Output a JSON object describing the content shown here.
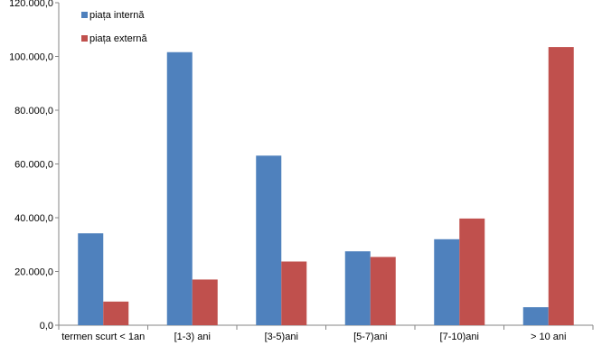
{
  "chart_data": {
    "type": "bar",
    "title": "",
    "xlabel": "",
    "ylabel": "",
    "categories": [
      "termen scurt < 1an",
      "[1-3) ani",
      "[3-5)ani",
      "[5-7)ani",
      "[7-10)ani",
      "> 10 ani"
    ],
    "series": [
      {
        "name": "piața internă",
        "color": "#4F81BD",
        "values": [
          34200,
          101600,
          63100,
          27500,
          32000,
          6700
        ]
      },
      {
        "name": "piața externă",
        "color": "#C0504D",
        "values": [
          8800,
          17000,
          23700,
          25400,
          39700,
          103500
        ]
      }
    ],
    "ylim": [
      0,
      120000
    ],
    "yticks": [
      0,
      20000,
      40000,
      60000,
      80000,
      100000,
      120000
    ],
    "ytick_labels": [
      "0,0",
      "20.000,0",
      "40.000,0",
      "60.000,0",
      "80.000,0",
      "100.000,0",
      "120.000,0"
    ],
    "grid": false,
    "legend_position": "top-left"
  }
}
